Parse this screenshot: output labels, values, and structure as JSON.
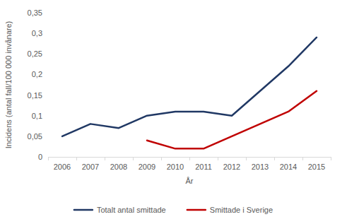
{
  "chart_data": {
    "type": "line",
    "y_label": "Incidens (antal fall/100 000 invånare)",
    "x_label": "År",
    "categories": [
      "2006",
      "2007",
      "2008",
      "2009",
      "2010",
      "2011",
      "2012",
      "2013",
      "2014",
      "2015"
    ],
    "series": [
      {
        "name": "Totalt antal smittade",
        "color": "#203864",
        "values": [
          0.05,
          0.08,
          0.07,
          0.1,
          0.11,
          0.11,
          0.1,
          0.16,
          0.22,
          0.29
        ]
      },
      {
        "name": "Smittade i Sverige",
        "color": "#c00000",
        "values": [
          null,
          null,
          null,
          0.04,
          0.02,
          0.02,
          0.05,
          0.08,
          0.11,
          0.16
        ]
      }
    ],
    "ylim": [
      0,
      0.35
    ],
    "yticks": [
      0,
      {
        "value": 0.05,
        "label": "0,05"
      },
      {
        "value": 0.1,
        "label": "0,1"
      },
      {
        "value": 0.15,
        "label": "0,15"
      },
      {
        "value": 0.2,
        "label": "0,2"
      },
      {
        "value": 0.25,
        "label": "0,25"
      },
      {
        "value": 0.3,
        "label": "0,3"
      },
      {
        "value": 0.35,
        "label": "0,35"
      }
    ],
    "grid": false,
    "legend": "bottom"
  }
}
